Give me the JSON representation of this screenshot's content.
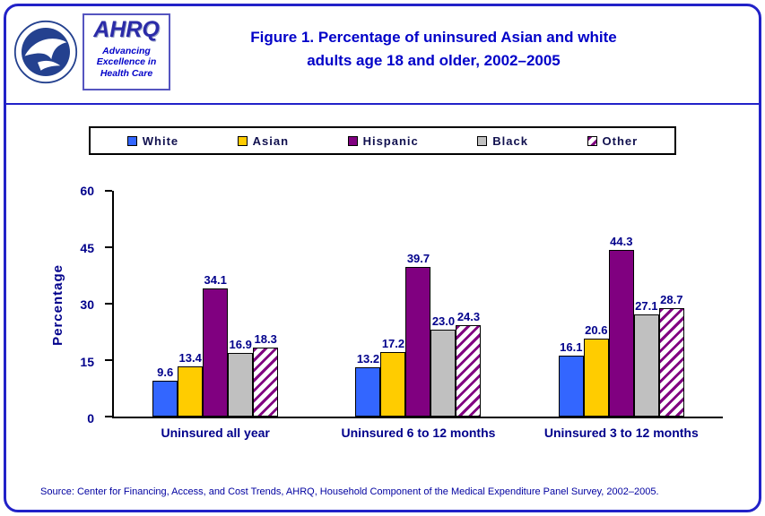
{
  "page": {
    "title_line1": "Figure 1. Percentage of uninsured Asian and white",
    "title_line2": "adults age 18 and older, 2002–2005",
    "source": "Source: Center for Financing, Access, and Cost Trends, AHRQ, Household Component of the Medical Expenditure Panel Survey, 2002–2005."
  },
  "logos": {
    "hhs_icon": "hhs-eagle-logo",
    "ahrq_name": "AHRQ",
    "ahrq_tagline": "Advancing\nExcellence in\nHealth Care"
  },
  "colors": {
    "frame_border": "#2222C8",
    "title_text": "#0000C8",
    "axis_text": "#00008B",
    "source_text": "#0000A0"
  },
  "chart_data": {
    "type": "bar",
    "title": "Figure 1. Percentage of uninsured Asian and white adults age 18 and older, 2002–2005",
    "categories": [
      "Uninsured all year",
      "Uninsured 6 to 12 months",
      "Uninsured 3 to 12 months"
    ],
    "series": [
      {
        "name": "White",
        "color": "#3366FF",
        "values": [
          9.6,
          13.2,
          16.1
        ]
      },
      {
        "name": "Asian",
        "color": "#FFCC00",
        "values": [
          13.4,
          17.2,
          20.6
        ]
      },
      {
        "name": "Hispanic",
        "color": "#800080",
        "values": [
          34.1,
          39.7,
          44.3
        ]
      },
      {
        "name": "Black",
        "color": "#C0C0C0",
        "values": [
          16.9,
          23.0,
          27.1
        ]
      },
      {
        "name": "Other",
        "color": "#FFFFFF",
        "hatch": "#800080",
        "values": [
          18.3,
          24.3,
          28.7
        ]
      }
    ],
    "xlabel": "",
    "ylabel": "Percentage",
    "ylim": [
      0,
      60
    ],
    "yticks": [
      0,
      15,
      30,
      45,
      60
    ],
    "grid": false,
    "legend_position": "top",
    "value_labels": true,
    "value_decimals": 1
  }
}
